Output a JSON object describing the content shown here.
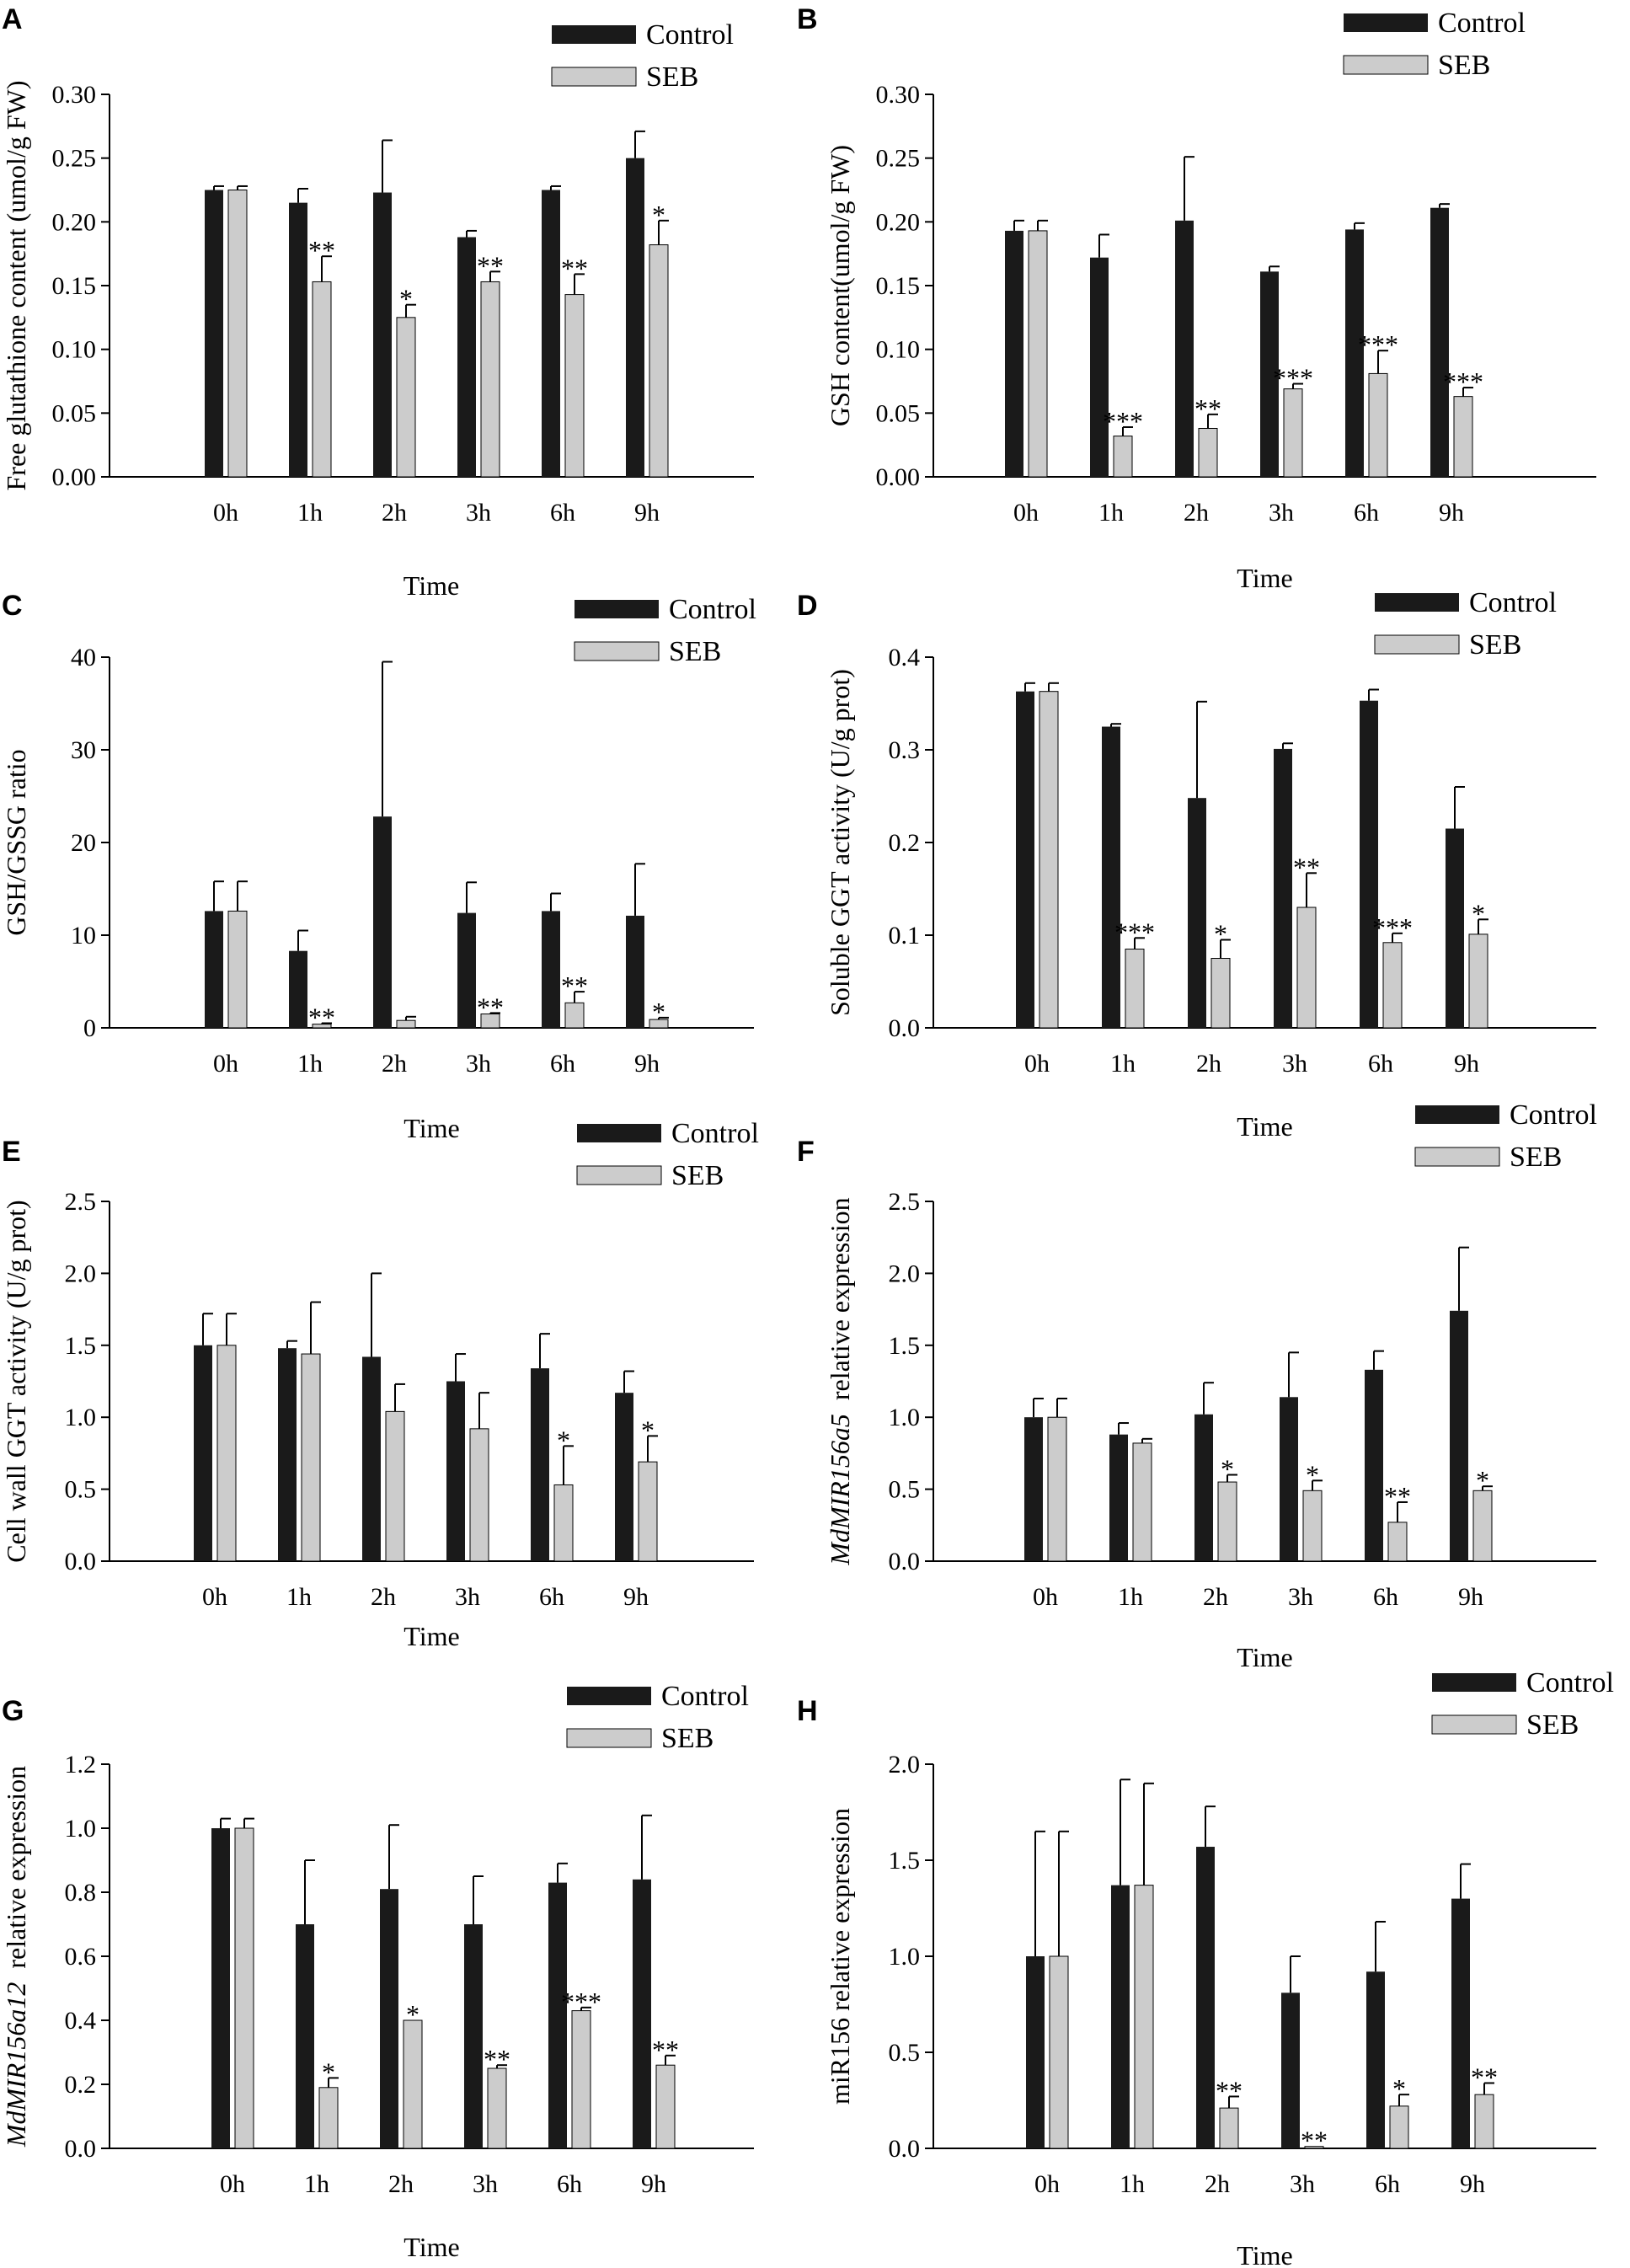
{
  "figure": {
    "series_names": [
      "Control",
      "SEB"
    ],
    "colors": {
      "control": "#1a1a1a",
      "seb": "#cccccc",
      "axis": "#000000"
    }
  },
  "chart_data": [
    {
      "panel": "A",
      "type": "bar",
      "categories": [
        "0h",
        "1h",
        "2h",
        "3h",
        "6h",
        "9h"
      ],
      "series": [
        {
          "name": "Control",
          "values": [
            0.225,
            0.215,
            0.223,
            0.188,
            0.225,
            0.25
          ],
          "errors": [
            0.003,
            0.011,
            0.041,
            0.005,
            0.003,
            0.021
          ]
        },
        {
          "name": "SEB",
          "values": [
            0.225,
            0.153,
            0.125,
            0.153,
            0.143,
            0.182
          ],
          "errors": [
            0.003,
            0.02,
            0.01,
            0.008,
            0.016,
            0.019
          ]
        }
      ],
      "significance": [
        "",
        "**",
        "*",
        "**",
        "**",
        "*"
      ],
      "ylabel": "Free glutathione content (umol/g FW)",
      "xlabel": "",
      "ylim": [
        0,
        0.3
      ],
      "yticks": [
        "0.00",
        "0.05",
        "0.10",
        "0.15",
        "0.20",
        "0.25",
        "0.30"
      ]
    },
    {
      "panel": "B",
      "type": "bar",
      "categories": [
        "0h",
        "1h",
        "2h",
        "3h",
        "6h",
        "9h"
      ],
      "series": [
        {
          "name": "Control",
          "values": [
            0.193,
            0.172,
            0.201,
            0.161,
            0.194,
            0.211
          ],
          "errors": [
            0.008,
            0.018,
            0.05,
            0.004,
            0.005,
            0.003
          ]
        },
        {
          "name": "SEB",
          "values": [
            0.193,
            0.032,
            0.038,
            0.069,
            0.081,
            0.063
          ],
          "errors": [
            0.008,
            0.007,
            0.011,
            0.004,
            0.018,
            0.007
          ]
        }
      ],
      "significance": [
        "",
        "***",
        "**",
        "***",
        "***",
        "***"
      ],
      "ylabel": "GSH content(umol/g FW)",
      "xlabel": "Time",
      "ylim": [
        0,
        0.3
      ],
      "yticks": [
        "0.00",
        "0.05",
        "0.10",
        "0.15",
        "0.20",
        "0.25",
        "0.30"
      ]
    },
    {
      "panel": "C",
      "type": "bar",
      "categories": [
        "0h",
        "1h",
        "2h",
        "3h",
        "6h",
        "9h"
      ],
      "series": [
        {
          "name": "Control",
          "values": [
            12.6,
            8.3,
            22.8,
            12.4,
            12.6,
            12.1
          ],
          "errors": [
            3.2,
            2.2,
            16.7,
            3.3,
            1.9,
            5.6
          ]
        },
        {
          "name": "SEB",
          "values": [
            12.6,
            0.4,
            0.8,
            1.5,
            2.7,
            0.9
          ],
          "errors": [
            3.2,
            0.1,
            0.4,
            0.1,
            1.2,
            0.2
          ]
        }
      ],
      "significance": [
        "",
        "**",
        "",
        "**",
        "**",
        "*"
      ],
      "ylabel": "GSH/GSSG ratio",
      "xlabel": "Time",
      "ylim": [
        0,
        40
      ],
      "yticks": [
        "0",
        "10",
        "20",
        "30",
        "40"
      ]
    },
    {
      "panel": "D",
      "type": "bar",
      "categories": [
        "0h",
        "1h",
        "2h",
        "3h",
        "6h",
        "9h"
      ],
      "series": [
        {
          "name": "Control",
          "values": [
            0.363,
            0.325,
            0.248,
            0.301,
            0.353,
            0.215
          ],
          "errors": [
            0.009,
            0.003,
            0.104,
            0.006,
            0.012,
            0.045
          ]
        },
        {
          "name": "SEB",
          "values": [
            0.363,
            0.085,
            0.075,
            0.13,
            0.092,
            0.101
          ],
          "errors": [
            0.009,
            0.012,
            0.02,
            0.037,
            0.01,
            0.016
          ]
        }
      ],
      "significance": [
        "",
        "***",
        "*",
        "**",
        "***",
        "*"
      ],
      "ylabel": "Soluble GGT activity (U/g prot)",
      "xlabel": "Time",
      "ylim": [
        0,
        0.4
      ],
      "yticks": [
        "0.0",
        "0.1",
        "0.2",
        "0.3",
        "0.4"
      ]
    },
    {
      "panel": "E",
      "type": "bar",
      "categories": [
        "0h",
        "1h",
        "2h",
        "3h",
        "6h",
        "9h"
      ],
      "series": [
        {
          "name": "Control",
          "values": [
            1.5,
            1.48,
            1.42,
            1.25,
            1.34,
            1.17
          ],
          "errors": [
            0.22,
            0.05,
            0.58,
            0.19,
            0.24,
            0.15
          ]
        },
        {
          "name": "SEB",
          "values": [
            1.5,
            1.44,
            1.04,
            0.92,
            0.53,
            0.69
          ],
          "errors": [
            0.22,
            0.36,
            0.19,
            0.25,
            0.27,
            0.18
          ]
        }
      ],
      "significance": [
        "",
        "",
        "",
        "",
        "*",
        "*"
      ],
      "ylabel": "Cell wall GGT activity  (U/g prot)",
      "xlabel": "Time",
      "ylim": [
        0,
        2.5
      ],
      "yticks": [
        "0.0",
        "0.5",
        "1.0",
        "1.5",
        "2.0",
        "2.5"
      ]
    },
    {
      "panel": "F",
      "type": "bar",
      "categories": [
        "0h",
        "1h",
        "2h",
        "3h",
        "6h",
        "9h"
      ],
      "series": [
        {
          "name": "Control",
          "values": [
            1.0,
            0.88,
            1.02,
            1.14,
            1.33,
            1.74
          ],
          "errors": [
            0.13,
            0.08,
            0.22,
            0.31,
            0.13,
            0.44
          ]
        },
        {
          "name": "SEB",
          "values": [
            1.0,
            0.82,
            0.55,
            0.49,
            0.27,
            0.49
          ],
          "errors": [
            0.13,
            0.03,
            0.05,
            0.07,
            0.14,
            0.03
          ]
        }
      ],
      "significance": [
        "",
        "",
        "*",
        "*",
        "**",
        "*"
      ],
      "ylabel_italic": "MdMIR156a5",
      "ylabel": "  relative expression",
      "xlabel": "Time",
      "ylim": [
        0,
        2.5
      ],
      "yticks": [
        "0.0",
        "0.5",
        "1.0",
        "1.5",
        "2.0",
        "2.5"
      ]
    },
    {
      "panel": "G",
      "type": "bar",
      "categories": [
        "0h",
        "1h",
        "2h",
        "3h",
        "6h",
        "9h"
      ],
      "series": [
        {
          "name": "Control",
          "values": [
            1.0,
            0.7,
            0.81,
            0.7,
            0.83,
            0.84
          ],
          "errors": [
            0.03,
            0.2,
            0.2,
            0.15,
            0.06,
            0.2
          ]
        },
        {
          "name": "SEB",
          "values": [
            1.0,
            0.19,
            0.4,
            0.25,
            0.43,
            0.26
          ],
          "errors": [
            0.03,
            0.03,
            0.0,
            0.01,
            0.01,
            0.03
          ]
        }
      ],
      "significance": [
        "",
        "*",
        "*",
        "**",
        "***",
        "**"
      ],
      "ylabel_italic": "MdMIR156a12",
      "ylabel": "  relative expression",
      "xlabel": "Time",
      "ylim": [
        0,
        1.2
      ],
      "yticks": [
        "0.0",
        "0.2",
        "0.4",
        "0.6",
        "0.8",
        "1.0",
        "1.2"
      ]
    },
    {
      "panel": "H",
      "type": "bar",
      "categories": [
        "0h",
        "1h",
        "2h",
        "3h",
        "6h",
        "9h"
      ],
      "series": [
        {
          "name": "Control",
          "values": [
            1.0,
            1.37,
            1.57,
            0.81,
            0.92,
            1.3
          ],
          "errors": [
            0.65,
            0.55,
            0.21,
            0.19,
            0.26,
            0.18
          ]
        },
        {
          "name": "SEB",
          "values": [
            1.0,
            1.37,
            0.21,
            0.01,
            0.22,
            0.28
          ],
          "errors": [
            0.65,
            0.53,
            0.06,
            0.0,
            0.06,
            0.06
          ]
        }
      ],
      "significance": [
        "",
        "",
        "**",
        "**",
        "*",
        "**"
      ],
      "ylabel": "miR156 relative expression",
      "xlabel": "Time",
      "ylim": [
        0,
        2.0
      ],
      "yticks": [
        "0.0",
        "0.5",
        "1.0",
        "1.5",
        "2.0"
      ]
    }
  ]
}
